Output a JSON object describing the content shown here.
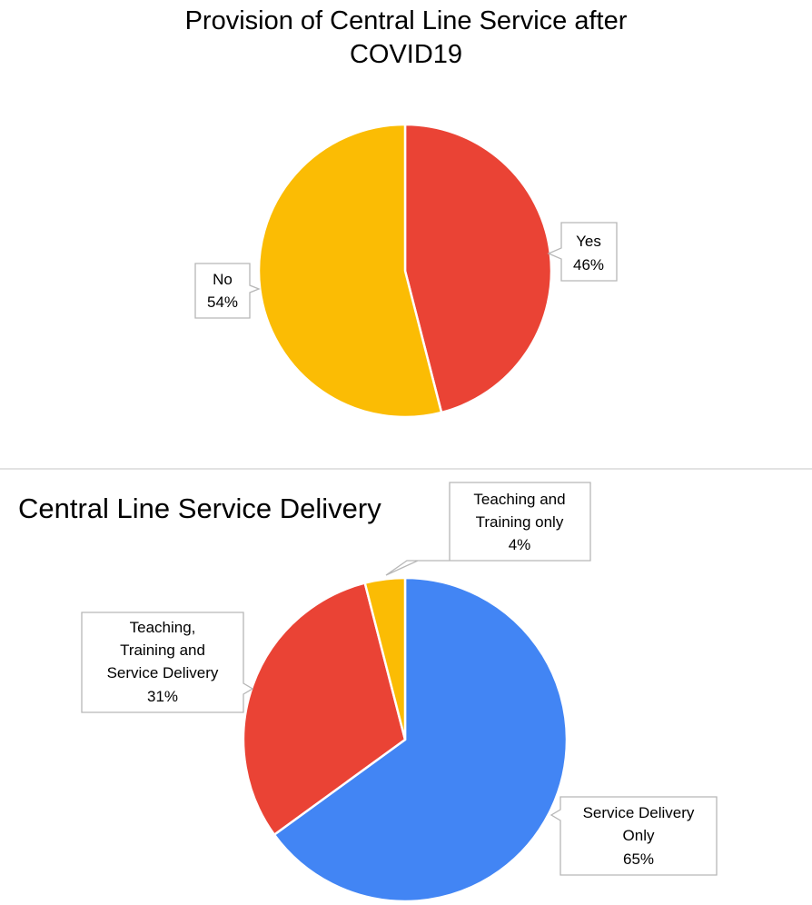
{
  "chart_data": [
    {
      "type": "pie",
      "title": "Provision of Central Line Service after COVID19",
      "title_lines": [
        "Provision of Central Line Service after",
        "COVID19"
      ],
      "slices": [
        {
          "label": "Yes",
          "value": 46,
          "value_label": "46%",
          "color": "#ea4335"
        },
        {
          "label": "No",
          "value": 54,
          "value_label": "54%",
          "color": "#fbbc04"
        }
      ]
    },
    {
      "type": "pie",
      "title": "Central Line Service Delivery",
      "title_lines": [
        "Central Line Service Delivery"
      ],
      "slices": [
        {
          "label": "Service Delivery Only",
          "label_lines": [
            "Service Delivery",
            "Only"
          ],
          "value": 65,
          "value_label": "65%",
          "color": "#4285f4"
        },
        {
          "label": "Teaching, Training and Service Delivery",
          "label_lines": [
            "Teaching,",
            "Training and",
            "Service Delivery"
          ],
          "value": 31,
          "value_label": "31%",
          "color": "#ea4335"
        },
        {
          "label": "Teaching and Training only",
          "label_lines": [
            "Teaching and",
            "Training only"
          ],
          "value": 4,
          "value_label": "4%",
          "color": "#fbbc04"
        }
      ]
    }
  ],
  "colors": {
    "divider": "#d9d9d9",
    "slice_border": "#ffffff",
    "callout_border": "#b7b7b7"
  }
}
